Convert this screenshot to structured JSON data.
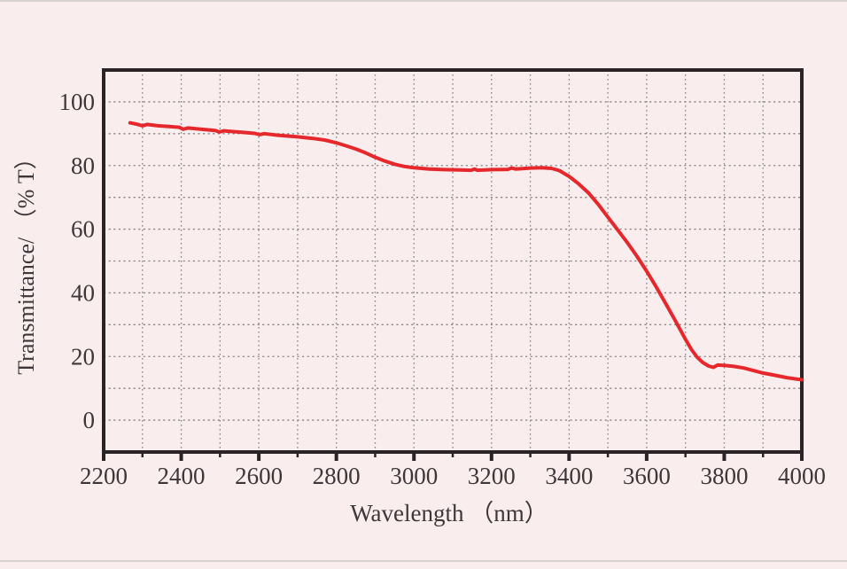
{
  "figure": {
    "background_color": "#f9edee",
    "frame_color": "#2b2426",
    "grid_color": "#8c8487",
    "text_color": "#3e3639",
    "edge_line_color": "#d8d2d3"
  },
  "chart_data": {
    "type": "line",
    "title": "",
    "xlabel": "Wavelength （nm）",
    "ylabel": "Transmittance/ （% T）",
    "xlim": [
      2200,
      4000
    ],
    "ylim": [
      -10,
      110
    ],
    "x_ticks": [
      2200,
      2400,
      2600,
      2800,
      3000,
      3200,
      3400,
      3600,
      3800,
      4000
    ],
    "y_ticks": [
      0,
      20,
      40,
      60,
      80,
      100
    ],
    "grid": {
      "on": true,
      "style": "dotted",
      "x_step": 100,
      "y_step": 10
    },
    "legend": {
      "visible": false
    },
    "series": [
      {
        "name": "transmittance-spectrum",
        "color": "#e6282c",
        "points": [
          [
            2268,
            93.4
          ],
          [
            2285,
            93.0
          ],
          [
            2300,
            92.5
          ],
          [
            2312,
            92.9
          ],
          [
            2340,
            92.5
          ],
          [
            2365,
            92.3
          ],
          [
            2395,
            92.0
          ],
          [
            2405,
            91.4
          ],
          [
            2417,
            91.8
          ],
          [
            2450,
            91.4
          ],
          [
            2488,
            91.0
          ],
          [
            2498,
            90.5
          ],
          [
            2510,
            90.9
          ],
          [
            2550,
            90.5
          ],
          [
            2590,
            90.1
          ],
          [
            2602,
            89.7
          ],
          [
            2614,
            90.0
          ],
          [
            2650,
            89.5
          ],
          [
            2700,
            89.0
          ],
          [
            2740,
            88.5
          ],
          [
            2770,
            88.0
          ],
          [
            2800,
            87.1
          ],
          [
            2825,
            86.2
          ],
          [
            2850,
            85.2
          ],
          [
            2875,
            84.0
          ],
          [
            2900,
            82.6
          ],
          [
            2925,
            81.4
          ],
          [
            2950,
            80.4
          ],
          [
            2975,
            79.7
          ],
          [
            3000,
            79.3
          ],
          [
            3040,
            78.9
          ],
          [
            3080,
            78.7
          ],
          [
            3120,
            78.6
          ],
          [
            3148,
            78.5
          ],
          [
            3156,
            78.9
          ],
          [
            3164,
            78.5
          ],
          [
            3200,
            78.7
          ],
          [
            3242,
            78.8
          ],
          [
            3252,
            79.2
          ],
          [
            3262,
            78.9
          ],
          [
            3300,
            79.2
          ],
          [
            3330,
            79.3
          ],
          [
            3355,
            79.1
          ],
          [
            3375,
            78.4
          ],
          [
            3400,
            76.6
          ],
          [
            3425,
            74.2
          ],
          [
            3450,
            71.4
          ],
          [
            3475,
            67.8
          ],
          [
            3500,
            63.8
          ],
          [
            3525,
            59.8
          ],
          [
            3550,
            55.8
          ],
          [
            3575,
            51.5
          ],
          [
            3600,
            46.8
          ],
          [
            3625,
            41.8
          ],
          [
            3650,
            36.4
          ],
          [
            3675,
            31.0
          ],
          [
            3700,
            25.4
          ],
          [
            3715,
            22.3
          ],
          [
            3730,
            19.8
          ],
          [
            3745,
            18.1
          ],
          [
            3760,
            17.0
          ],
          [
            3772,
            16.6
          ],
          [
            3783,
            17.3
          ],
          [
            3800,
            17.2
          ],
          [
            3825,
            16.9
          ],
          [
            3850,
            16.4
          ],
          [
            3875,
            15.6
          ],
          [
            3900,
            14.8
          ],
          [
            3930,
            14.1
          ],
          [
            3960,
            13.4
          ],
          [
            4000,
            12.7
          ]
        ]
      }
    ]
  }
}
